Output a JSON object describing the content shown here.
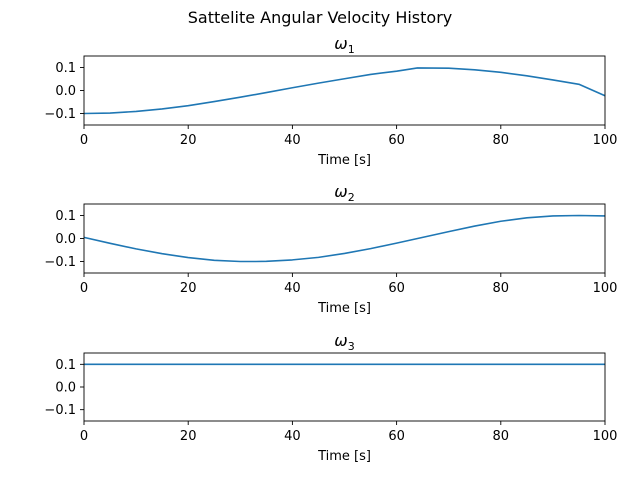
{
  "figure_title": "Sattelite Angular Velocity History",
  "chart_data": [
    {
      "type": "line",
      "title": "ω",
      "title_subscript": "1",
      "xlabel": "Time [s]",
      "ylabel": "",
      "xlim": [
        0,
        100
      ],
      "ylim": [
        -0.15,
        0.15
      ],
      "xticks": [
        "0",
        "20",
        "40",
        "60",
        "80",
        "100"
      ],
      "yticks": [
        "0.1",
        "0.0",
        "−0.1"
      ],
      "grid": false,
      "series": [
        {
          "color": "#1f77b4",
          "x": [
            0,
            5,
            10,
            15,
            20,
            25,
            30,
            35,
            40,
            45,
            50,
            55,
            60,
            64,
            70,
            75,
            80,
            85,
            90,
            95,
            100
          ],
          "y": [
            -0.1,
            -0.098,
            -0.091,
            -0.08,
            -0.066,
            -0.048,
            -0.029,
            -0.009,
            0.012,
            0.032,
            0.051,
            0.07,
            0.084,
            0.098,
            0.097,
            0.09,
            0.079,
            0.064,
            0.046,
            0.027,
            -0.023
          ]
        }
      ]
    },
    {
      "type": "line",
      "title": "ω",
      "title_subscript": "2",
      "xlabel": "Time [s]",
      "ylabel": "",
      "xlim": [
        0,
        100
      ],
      "ylim": [
        -0.15,
        0.15
      ],
      "xticks": [
        "0",
        "20",
        "40",
        "60",
        "80",
        "100"
      ],
      "yticks": [
        "0.1",
        "0.0",
        "−0.1"
      ],
      "grid": false,
      "series": [
        {
          "color": "#1f77b4",
          "x": [
            0,
            5,
            10,
            15,
            20,
            25,
            30,
            33,
            35,
            40,
            45,
            50,
            55,
            60,
            65,
            70,
            75,
            80,
            85,
            90,
            95,
            100
          ],
          "y": [
            0.005,
            -0.021,
            -0.045,
            -0.066,
            -0.083,
            -0.095,
            -0.1,
            -0.1,
            -0.099,
            -0.093,
            -0.082,
            -0.065,
            -0.044,
            -0.02,
            0.005,
            0.03,
            0.054,
            0.075,
            0.09,
            0.098,
            0.1,
            0.098
          ]
        }
      ]
    },
    {
      "type": "line",
      "title": "ω",
      "title_subscript": "3",
      "xlabel": "Time [s]",
      "ylabel": "",
      "xlim": [
        0,
        100
      ],
      "ylim": [
        -0.15,
        0.15
      ],
      "xticks": [
        "0",
        "20",
        "40",
        "60",
        "80",
        "100"
      ],
      "yticks": [
        "0.1",
        "0.0",
        "−0.1"
      ],
      "grid": false,
      "series": [
        {
          "color": "#1f77b4",
          "x": [
            0,
            100
          ],
          "y": [
            0.1,
            0.1
          ]
        }
      ]
    }
  ]
}
